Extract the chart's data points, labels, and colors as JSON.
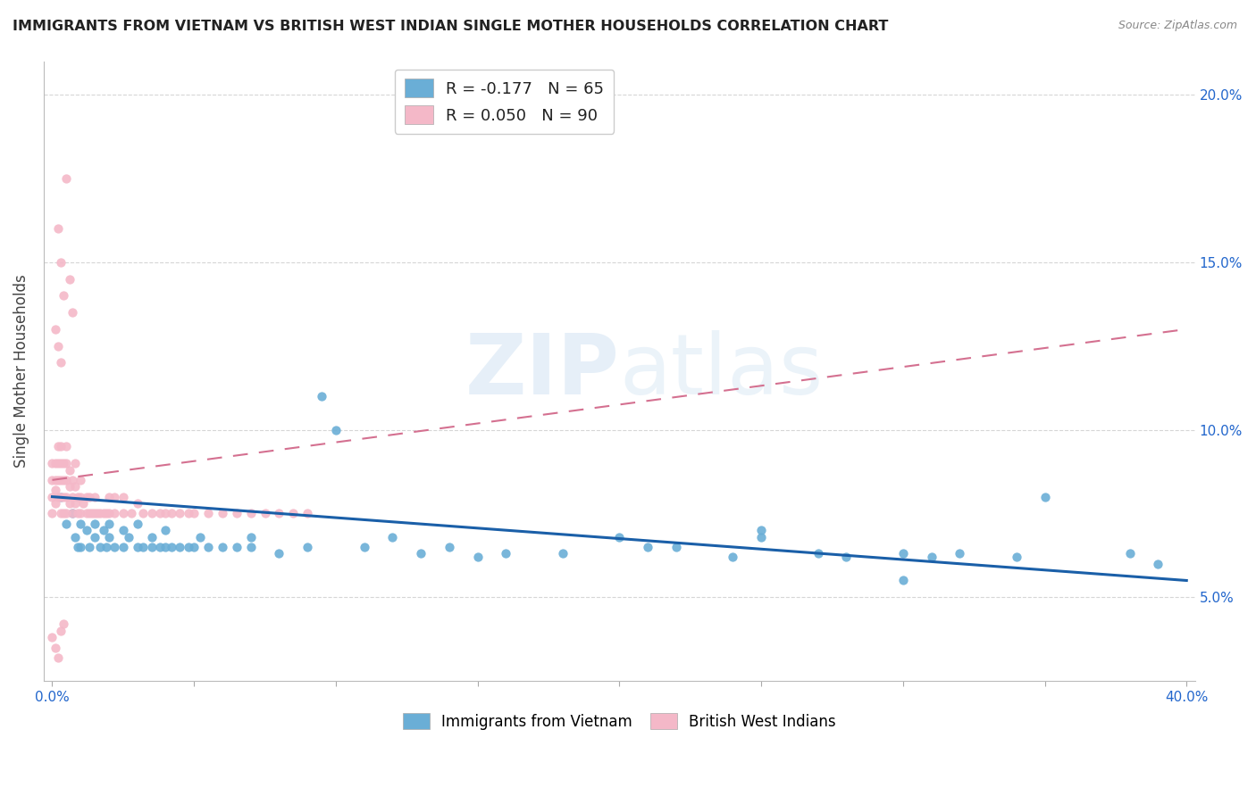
{
  "title": "IMMIGRANTS FROM VIETNAM VS BRITISH WEST INDIAN SINGLE MOTHER HOUSEHOLDS CORRELATION CHART",
  "source": "Source: ZipAtlas.com",
  "ylabel": "Single Mother Households",
  "legend1_label": "R = -0.177   N = 65",
  "legend2_label": "R = 0.050   N = 90",
  "legend1_color": "#a8c4e0",
  "legend2_color": "#f4b8c8",
  "watermark": "ZIPatlas",
  "blue_color": "#6aaed6",
  "pink_color": "#f4b8c8",
  "blue_line_color": "#1a5fa8",
  "pink_line_color": "#d47090",
  "blue_R": -0.177,
  "pink_R": 0.05,
  "xlim_min": 0.0,
  "xlim_max": 0.4,
  "ylim_min": 0.025,
  "ylim_max": 0.21,
  "yticks": [
    0.05,
    0.1,
    0.15,
    0.2
  ],
  "xtick_labels": [
    "0.0%",
    "",
    "",
    "",
    "",
    "",
    "",
    "",
    "40.0%"
  ],
  "blue_scatter_x": [
    0.003,
    0.005,
    0.007,
    0.008,
    0.009,
    0.01,
    0.01,
    0.012,
    0.013,
    0.015,
    0.015,
    0.017,
    0.018,
    0.019,
    0.02,
    0.02,
    0.022,
    0.025,
    0.025,
    0.027,
    0.03,
    0.03,
    0.032,
    0.035,
    0.035,
    0.038,
    0.04,
    0.04,
    0.042,
    0.045,
    0.048,
    0.05,
    0.052,
    0.055,
    0.06,
    0.065,
    0.07,
    0.07,
    0.08,
    0.09,
    0.095,
    0.1,
    0.11,
    0.12,
    0.13,
    0.14,
    0.15,
    0.16,
    0.18,
    0.2,
    0.21,
    0.22,
    0.24,
    0.25,
    0.27,
    0.28,
    0.3,
    0.31,
    0.32,
    0.34,
    0.35,
    0.38,
    0.39,
    0.25,
    0.3
  ],
  "blue_scatter_y": [
    0.08,
    0.072,
    0.075,
    0.068,
    0.065,
    0.072,
    0.065,
    0.07,
    0.065,
    0.068,
    0.072,
    0.065,
    0.07,
    0.065,
    0.068,
    0.072,
    0.065,
    0.07,
    0.065,
    0.068,
    0.065,
    0.072,
    0.065,
    0.068,
    0.065,
    0.065,
    0.07,
    0.065,
    0.065,
    0.065,
    0.065,
    0.065,
    0.068,
    0.065,
    0.065,
    0.065,
    0.065,
    0.068,
    0.063,
    0.065,
    0.11,
    0.1,
    0.065,
    0.068,
    0.063,
    0.065,
    0.062,
    0.063,
    0.063,
    0.068,
    0.065,
    0.065,
    0.062,
    0.068,
    0.063,
    0.062,
    0.063,
    0.062,
    0.063,
    0.062,
    0.08,
    0.063,
    0.06,
    0.07,
    0.055
  ],
  "pink_scatter_x": [
    0.0,
    0.0,
    0.0,
    0.0,
    0.001,
    0.001,
    0.001,
    0.001,
    0.002,
    0.002,
    0.002,
    0.002,
    0.003,
    0.003,
    0.003,
    0.003,
    0.003,
    0.004,
    0.004,
    0.004,
    0.004,
    0.005,
    0.005,
    0.005,
    0.005,
    0.005,
    0.006,
    0.006,
    0.006,
    0.007,
    0.007,
    0.007,
    0.008,
    0.008,
    0.008,
    0.009,
    0.009,
    0.01,
    0.01,
    0.01,
    0.011,
    0.012,
    0.012,
    0.013,
    0.013,
    0.014,
    0.015,
    0.015,
    0.016,
    0.017,
    0.018,
    0.019,
    0.02,
    0.02,
    0.022,
    0.022,
    0.025,
    0.025,
    0.028,
    0.03,
    0.032,
    0.035,
    0.038,
    0.04,
    0.042,
    0.045,
    0.048,
    0.05,
    0.055,
    0.06,
    0.065,
    0.07,
    0.075,
    0.08,
    0.085,
    0.09,
    0.002,
    0.003,
    0.004,
    0.005,
    0.006,
    0.007,
    0.001,
    0.002,
    0.003,
    0.004,
    0.0,
    0.001,
    0.002,
    0.003
  ],
  "pink_scatter_y": [
    0.075,
    0.08,
    0.085,
    0.09,
    0.082,
    0.078,
    0.085,
    0.09,
    0.08,
    0.085,
    0.09,
    0.095,
    0.075,
    0.08,
    0.085,
    0.09,
    0.095,
    0.075,
    0.08,
    0.085,
    0.09,
    0.075,
    0.08,
    0.085,
    0.09,
    0.095,
    0.078,
    0.083,
    0.088,
    0.075,
    0.08,
    0.085,
    0.078,
    0.083,
    0.09,
    0.075,
    0.08,
    0.075,
    0.08,
    0.085,
    0.078,
    0.075,
    0.08,
    0.075,
    0.08,
    0.075,
    0.075,
    0.08,
    0.075,
    0.075,
    0.075,
    0.075,
    0.075,
    0.08,
    0.075,
    0.08,
    0.075,
    0.08,
    0.075,
    0.078,
    0.075,
    0.075,
    0.075,
    0.075,
    0.075,
    0.075,
    0.075,
    0.075,
    0.075,
    0.075,
    0.075,
    0.075,
    0.075,
    0.075,
    0.075,
    0.075,
    0.16,
    0.15,
    0.14,
    0.175,
    0.145,
    0.135,
    0.13,
    0.125,
    0.12,
    0.042,
    0.038,
    0.035,
    0.032,
    0.04
  ]
}
